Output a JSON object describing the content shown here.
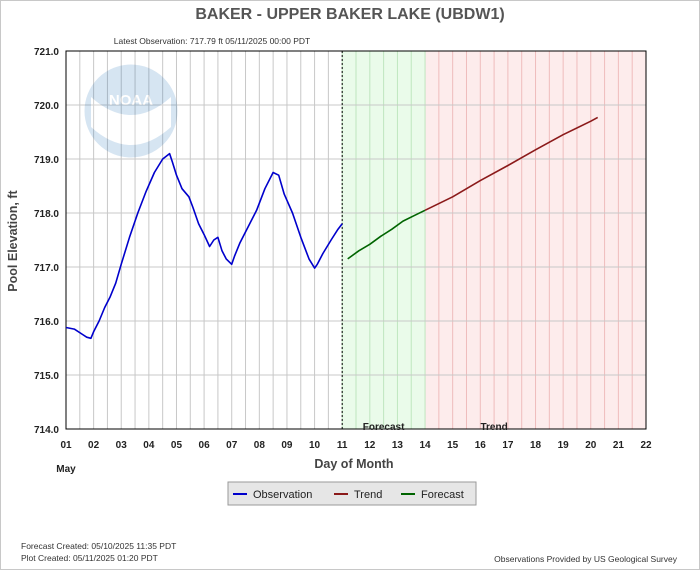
{
  "header": {
    "title": "BAKER - UPPER BAKER LAKE  (UBDW1)",
    "latest_observation": "Latest Observation: 717.79 ft 05/11/2025 00:00 PDT"
  },
  "footer": {
    "forecast_created": "Forecast Created: 05/10/2025 11:35 PDT",
    "plot_created": "Plot Created: 05/11/2025 01:20 PDT",
    "credit": "Observations Provided by US Geological Survey"
  },
  "logo": {
    "text": "NOAA"
  },
  "colors": {
    "observation": "#0000cc",
    "trend": "#8b1a1a",
    "forecast": "#006400",
    "forecast_region": "#eafbea",
    "trend_region": "#fdecec"
  },
  "chart_data": {
    "type": "line",
    "title": "BAKER - UPPER BAKER LAKE  (UBDW1)",
    "xlabel": "Day of Month",
    "ylabel": "Pool Elevation, ft",
    "x_month_label": "May",
    "xlim": [
      1,
      22
    ],
    "ylim": [
      714.0,
      721.0
    ],
    "x_tick_labels": [
      "01",
      "02",
      "03",
      "04",
      "05",
      "06",
      "07",
      "08",
      "09",
      "10",
      "11",
      "12",
      "13",
      "14",
      "15",
      "16",
      "17",
      "18",
      "19",
      "20",
      "21",
      "22"
    ],
    "y_tick_labels": [
      "714.0",
      "715.0",
      "716.0",
      "717.0",
      "718.0",
      "719.0",
      "720.0",
      "721.0"
    ],
    "grid": true,
    "legend_position": "bottom-center",
    "region_labels": {
      "forecast": "Forecast",
      "trend": "Trend"
    },
    "observation_time": 11.0,
    "forecast_region": [
      11.0,
      14.0
    ],
    "trend_region": [
      14.0,
      22.0
    ],
    "series": [
      {
        "name": "Observation",
        "color": "#0000cc",
        "x": [
          1.0,
          1.3,
          1.6,
          1.75,
          1.9,
          2.0,
          2.2,
          2.4,
          2.6,
          2.8,
          3.0,
          3.3,
          3.6,
          3.9,
          4.2,
          4.5,
          4.75,
          4.85,
          5.0,
          5.2,
          5.45,
          5.6,
          5.8,
          6.0,
          6.2,
          6.35,
          6.5,
          6.65,
          6.8,
          7.0,
          7.1,
          7.3,
          7.6,
          7.9,
          8.2,
          8.5,
          8.7,
          8.9,
          9.2,
          9.5,
          9.8,
          10.0,
          10.1,
          10.3,
          10.6,
          10.85,
          11.0
        ],
        "y": [
          715.88,
          715.85,
          715.75,
          715.7,
          715.68,
          715.8,
          716.0,
          716.25,
          716.45,
          716.7,
          717.05,
          717.55,
          718.0,
          718.4,
          718.75,
          719.0,
          719.1,
          718.95,
          718.7,
          718.45,
          718.3,
          718.1,
          717.8,
          717.6,
          717.38,
          717.5,
          717.55,
          717.3,
          717.15,
          717.05,
          717.2,
          717.45,
          717.75,
          718.05,
          718.45,
          718.75,
          718.7,
          718.35,
          718.0,
          717.55,
          717.15,
          716.98,
          717.05,
          717.25,
          717.5,
          717.7,
          717.8
        ]
      },
      {
        "name": "Forecast",
        "color": "#006400",
        "x": [
          11.2,
          11.6,
          12.0,
          12.4,
          12.8,
          13.2,
          13.6,
          14.0
        ],
        "y": [
          717.15,
          717.3,
          717.42,
          717.57,
          717.7,
          717.85,
          717.95,
          718.05
        ]
      },
      {
        "name": "Trend",
        "color": "#8b1a1a",
        "x": [
          14.0,
          15.0,
          16.0,
          17.0,
          18.0,
          19.0,
          20.0,
          20.25
        ],
        "y": [
          718.05,
          718.3,
          718.6,
          718.88,
          719.17,
          719.45,
          719.7,
          719.77
        ]
      }
    ]
  }
}
